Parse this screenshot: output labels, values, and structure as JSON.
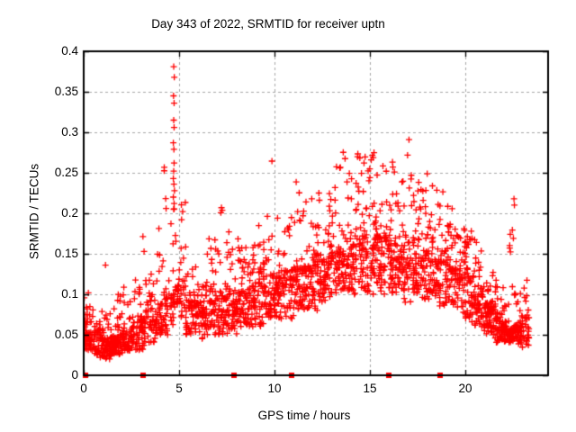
{
  "chart_data": {
    "type": "scatter",
    "title": "Day 343 of 2022, SRMTID for receiver uptn",
    "xlabel": "GPS time / hours",
    "ylabel": "SRMTID / TECUs",
    "xlim": [
      0,
      24.35
    ],
    "ylim": [
      0,
      0.4
    ],
    "xticks": [
      0,
      5,
      10,
      15,
      20
    ],
    "xtick_labels": [
      "0",
      "5",
      "10",
      "15",
      "20"
    ],
    "yticks": [
      0,
      0.05,
      0.1,
      0.15,
      0.2,
      0.25,
      0.3,
      0.35,
      0.4
    ],
    "ytick_labels": [
      "0",
      "0.05",
      "0.1",
      "0.15",
      "0.2",
      "0.25",
      "0.3",
      "0.35",
      "0.4"
    ],
    "grid": true,
    "grid_style": "dashed",
    "legend": "none",
    "marker": {
      "shape": "plus",
      "size": 7,
      "color": "#ff0000"
    },
    "colors": {
      "marker_color": "#ff0000",
      "grid_color": "#a6a6a6",
      "border_color": "#000000",
      "background": "#ffffff",
      "text_color": "#000000"
    },
    "seed": 343,
    "series": [
      {
        "name": "srmtid-density-bins",
        "note": "dense scatter summarized as bins: [hour_center, count, y_min, y_dense_mode, y_max]",
        "bins": [
          [
            0.1,
            40,
            0.03,
            0.05,
            0.105
          ],
          [
            0.4,
            28,
            0.03,
            0.05,
            0.09
          ],
          [
            0.7,
            26,
            0.025,
            0.055,
            0.12
          ],
          [
            1.0,
            34,
            0.02,
            0.045,
            0.15
          ],
          [
            1.3,
            40,
            0.02,
            0.04,
            0.08
          ],
          [
            1.6,
            44,
            0.025,
            0.045,
            0.09
          ],
          [
            1.9,
            38,
            0.025,
            0.05,
            0.1
          ],
          [
            2.2,
            30,
            0.03,
            0.05,
            0.11
          ],
          [
            2.5,
            28,
            0.03,
            0.06,
            0.1
          ],
          [
            2.8,
            26,
            0.03,
            0.06,
            0.12
          ],
          [
            3.1,
            34,
            0.03,
            0.07,
            0.19
          ],
          [
            3.4,
            26,
            0.04,
            0.08,
            0.13
          ],
          [
            3.7,
            26,
            0.04,
            0.08,
            0.15
          ],
          [
            4.0,
            28,
            0.05,
            0.09,
            0.2
          ],
          [
            4.3,
            28,
            0.05,
            0.1,
            0.26
          ],
          [
            4.6,
            24,
            0.06,
            0.1,
            0.25
          ],
          [
            4.9,
            24,
            0.07,
            0.11,
            0.22
          ],
          [
            5.2,
            22,
            0.07,
            0.11,
            0.235
          ],
          [
            5.5,
            28,
            0.05,
            0.09,
            0.16
          ],
          [
            5.8,
            28,
            0.05,
            0.09,
            0.14
          ],
          [
            6.1,
            28,
            0.04,
            0.08,
            0.13
          ],
          [
            6.4,
            28,
            0.05,
            0.09,
            0.15
          ],
          [
            6.7,
            28,
            0.05,
            0.09,
            0.17
          ],
          [
            7.0,
            28,
            0.05,
            0.1,
            0.19
          ],
          [
            7.3,
            28,
            0.05,
            0.1,
            0.225
          ],
          [
            7.6,
            28,
            0.05,
            0.1,
            0.18
          ],
          [
            7.9,
            32,
            0.05,
            0.09,
            0.16
          ],
          [
            8.2,
            32,
            0.06,
            0.1,
            0.17
          ],
          [
            8.5,
            30,
            0.06,
            0.1,
            0.16
          ],
          [
            8.8,
            30,
            0.06,
            0.1,
            0.18
          ],
          [
            9.1,
            30,
            0.06,
            0.11,
            0.19
          ],
          [
            9.4,
            30,
            0.06,
            0.11,
            0.17
          ],
          [
            9.7,
            30,
            0.07,
            0.11,
            0.2
          ],
          [
            10.0,
            30,
            0.07,
            0.12,
            0.27
          ],
          [
            10.3,
            30,
            0.07,
            0.12,
            0.2
          ],
          [
            10.6,
            24,
            0.07,
            0.12,
            0.19
          ],
          [
            10.9,
            28,
            0.07,
            0.12,
            0.21
          ],
          [
            11.2,
            30,
            0.08,
            0.13,
            0.25
          ],
          [
            11.5,
            30,
            0.08,
            0.13,
            0.22
          ],
          [
            11.8,
            30,
            0.08,
            0.13,
            0.24
          ],
          [
            12.1,
            30,
            0.08,
            0.14,
            0.22
          ],
          [
            12.4,
            30,
            0.09,
            0.14,
            0.23
          ],
          [
            12.7,
            30,
            0.09,
            0.14,
            0.21
          ],
          [
            13.0,
            30,
            0.09,
            0.15,
            0.24
          ],
          [
            13.3,
            30,
            0.09,
            0.15,
            0.26
          ],
          [
            13.6,
            30,
            0.1,
            0.15,
            0.28
          ],
          [
            13.9,
            30,
            0.1,
            0.16,
            0.25
          ],
          [
            14.2,
            30,
            0.1,
            0.16,
            0.26
          ],
          [
            14.5,
            30,
            0.1,
            0.16,
            0.29
          ],
          [
            14.8,
            30,
            0.1,
            0.17,
            0.27
          ],
          [
            15.1,
            30,
            0.1,
            0.17,
            0.3
          ],
          [
            15.4,
            30,
            0.11,
            0.17,
            0.31
          ],
          [
            15.7,
            30,
            0.1,
            0.17,
            0.27
          ],
          [
            16.0,
            30,
            0.1,
            0.16,
            0.26
          ],
          [
            16.3,
            30,
            0.1,
            0.16,
            0.28
          ],
          [
            16.6,
            30,
            0.1,
            0.16,
            0.27
          ],
          [
            16.9,
            30,
            0.09,
            0.16,
            0.3
          ],
          [
            17.2,
            30,
            0.09,
            0.16,
            0.31
          ],
          [
            17.5,
            30,
            0.09,
            0.15,
            0.26
          ],
          [
            17.8,
            30,
            0.09,
            0.15,
            0.24
          ],
          [
            18.1,
            30,
            0.09,
            0.15,
            0.25
          ],
          [
            18.4,
            30,
            0.09,
            0.14,
            0.26
          ],
          [
            18.7,
            30,
            0.08,
            0.14,
            0.24
          ],
          [
            19.0,
            30,
            0.08,
            0.14,
            0.22
          ],
          [
            19.3,
            30,
            0.08,
            0.13,
            0.21
          ],
          [
            19.6,
            30,
            0.08,
            0.13,
            0.2
          ],
          [
            19.9,
            30,
            0.07,
            0.12,
            0.19
          ],
          [
            20.2,
            30,
            0.07,
            0.12,
            0.18
          ],
          [
            20.5,
            30,
            0.06,
            0.11,
            0.17
          ],
          [
            20.8,
            34,
            0.06,
            0.1,
            0.16
          ],
          [
            21.1,
            34,
            0.05,
            0.09,
            0.15
          ],
          [
            21.4,
            34,
            0.05,
            0.08,
            0.13
          ],
          [
            21.7,
            38,
            0.04,
            0.07,
            0.12
          ],
          [
            22.0,
            38,
            0.04,
            0.06,
            0.11
          ],
          [
            22.3,
            30,
            0.04,
            0.06,
            0.12
          ],
          [
            22.45,
            8,
            0.13,
            0.18,
            0.25
          ],
          [
            22.6,
            34,
            0.04,
            0.06,
            0.11
          ],
          [
            22.9,
            34,
            0.03,
            0.06,
            0.11
          ],
          [
            23.2,
            28,
            0.03,
            0.07,
            0.12
          ]
        ]
      },
      {
        "name": "spike-outlier-points",
        "points": [
          [
            4.72,
            0.381
          ],
          [
            4.75,
            0.368
          ],
          [
            4.71,
            0.345
          ],
          [
            4.74,
            0.336
          ],
          [
            4.72,
            0.315
          ],
          [
            4.74,
            0.306
          ],
          [
            4.7,
            0.287
          ],
          [
            4.73,
            0.279
          ],
          [
            4.74,
            0.262
          ],
          [
            4.72,
            0.252
          ],
          [
            4.7,
            0.243
          ],
          [
            4.73,
            0.236
          ],
          [
            4.76,
            0.228
          ],
          [
            4.7,
            0.22
          ],
          [
            4.74,
            0.212
          ],
          [
            4.72,
            0.205
          ]
        ]
      },
      {
        "name": "axis-event-markers",
        "marker": "filled-square",
        "points": [
          [
            0.1,
            0
          ],
          [
            3.1,
            0
          ],
          [
            7.9,
            0
          ],
          [
            10.9,
            0
          ],
          [
            16.0,
            0
          ],
          [
            18.7,
            0
          ]
        ]
      }
    ]
  }
}
